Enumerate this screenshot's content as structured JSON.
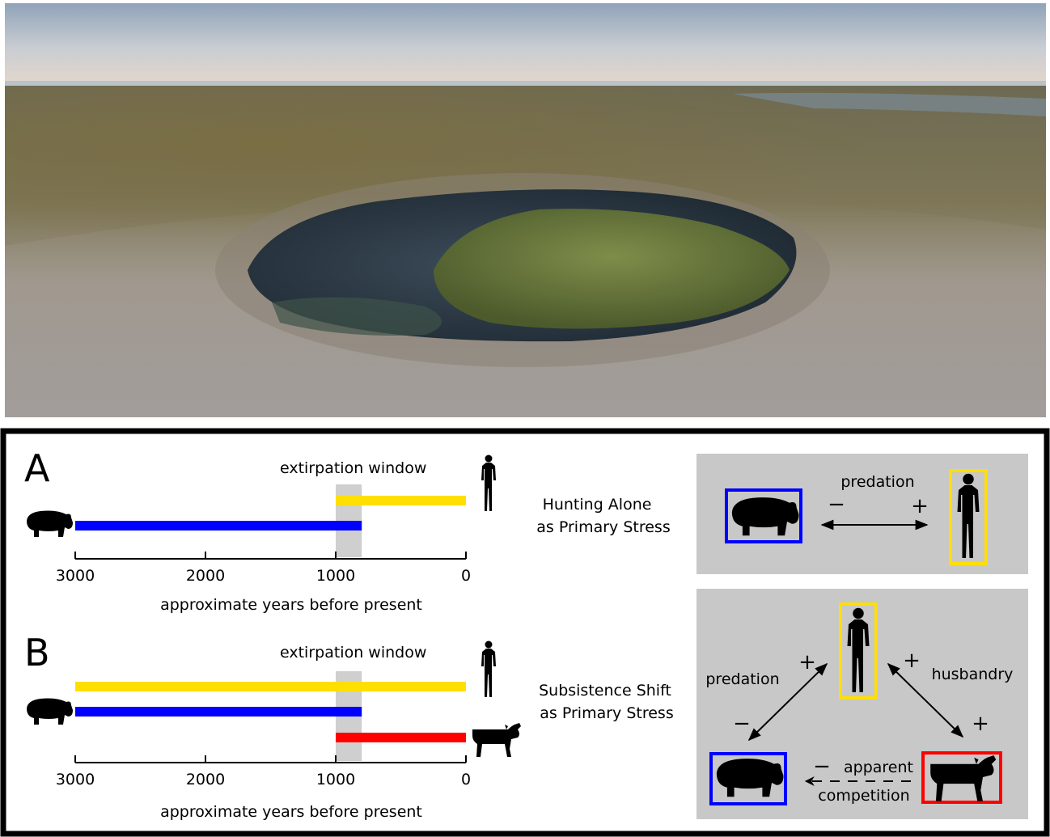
{
  "panel_a": {
    "letter": "A",
    "window_label": "extirpation window",
    "axis_label": "approximate years before present",
    "ticks": [
      "3000",
      "2000",
      "1000",
      "0"
    ],
    "caption_line1": "Hunting Alone",
    "caption_line2": "as Primary Stress",
    "bars": [
      {
        "species": "human",
        "color": "#ffdf00",
        "from": 1000,
        "to": 0
      },
      {
        "species": "hippo",
        "color": "#0000ff",
        "from": 3000,
        "to": 800
      }
    ],
    "window": {
      "from": 1000,
      "to": 800
    },
    "diagram": {
      "edge_label": "predation",
      "minus": "−",
      "plus": "+"
    }
  },
  "panel_b": {
    "letter": "B",
    "window_label": "extirpation window",
    "axis_label": "approximate years before present",
    "ticks": [
      "3000",
      "2000",
      "1000",
      "0"
    ],
    "caption_line1": "Subsistence Shift",
    "caption_line2": "as Primary Stress",
    "bars": [
      {
        "species": "human",
        "color": "#ffdf00",
        "from": 3000,
        "to": 0
      },
      {
        "species": "hippo",
        "color": "#0000ff",
        "from": 3000,
        "to": 800
      },
      {
        "species": "cattle",
        "color": "#ff0000",
        "from": 1000,
        "to": 0
      }
    ],
    "window": {
      "from": 1000,
      "to": 800
    },
    "diagram": {
      "predation_label": "predation",
      "husbandry_label": "husbandry",
      "apparent_label": "apparent",
      "competition_label": "competition",
      "plus": "+",
      "minus": "−"
    }
  },
  "colors": {
    "hippo": "#0000ff",
    "human": "#ffdf00",
    "cattle": "#ff0000",
    "window": "#cfcfcf",
    "diagram_bg": "#c8c8c8"
  }
}
